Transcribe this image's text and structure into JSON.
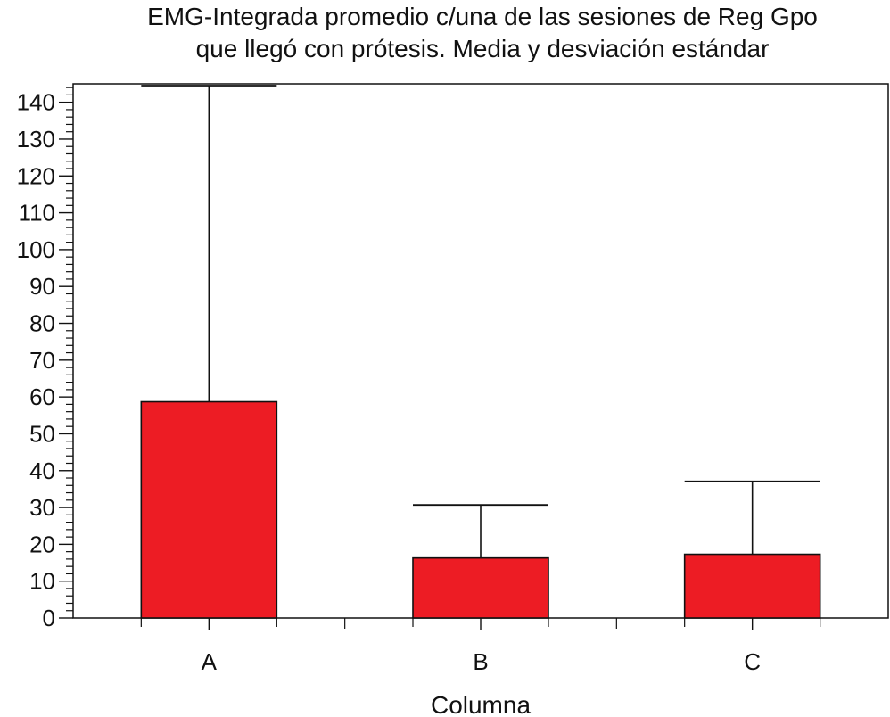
{
  "chart_data": {
    "type": "bar",
    "title": "EMG-Integrada promedio c/una de las sesiones de Reg Gpo que llegó con prótesis. Media y desviación estándar",
    "title_lines": [
      "EMG-Integrada promedio c/una de las sesiones de Reg Gpo",
      "que llegó con prótesis. Media y desviación estándar"
    ],
    "xlabel": "Columna",
    "ylabel": "",
    "categories": [
      "A",
      "B",
      "C"
    ],
    "series": [
      {
        "values": [
          58.7,
          16.3,
          17.3
        ],
        "error_upper": [
          86.0,
          14.4,
          19.8
        ]
      }
    ],
    "ylim": [
      0,
      145
    ],
    "yticks": [
      0,
      10,
      20,
      30,
      40,
      50,
      60,
      70,
      80,
      90,
      100,
      110,
      120,
      130,
      140
    ],
    "bar_color": "#ed1c24",
    "grid": false,
    "legend": "none"
  }
}
